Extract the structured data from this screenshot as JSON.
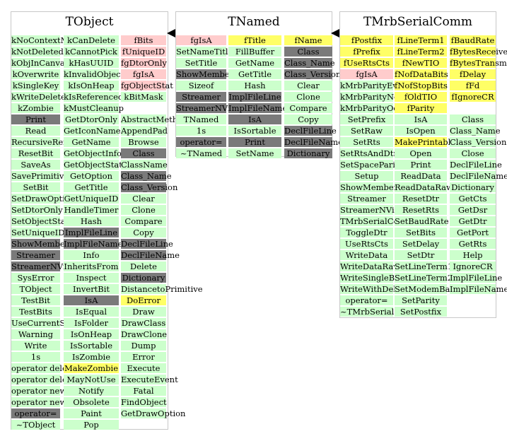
{
  "boxes": [
    {
      "title": "TObject",
      "columns": [
        [
          {
            "t": "kNoContextMenu",
            "c": "m"
          },
          {
            "t": "kNotDeleted",
            "c": "m"
          },
          {
            "t": "kObjInCanvas",
            "c": "m"
          },
          {
            "t": "kOverwrite",
            "c": "m"
          },
          {
            "t": "kSingleKey",
            "c": "m"
          },
          {
            "t": "kWriteDelete",
            "c": "m"
          },
          {
            "t": "kZombie",
            "c": "m"
          },
          {
            "t": "Print",
            "c": "g"
          },
          {
            "t": "Read",
            "c": "m"
          },
          {
            "t": "RecursiveRemove",
            "c": "m"
          },
          {
            "t": "ResetBit",
            "c": "m"
          },
          {
            "t": "SaveAs",
            "c": "m"
          },
          {
            "t": "SavePrimitive",
            "c": "m"
          },
          {
            "t": "SetBit",
            "c": "m"
          },
          {
            "t": "SetDrawOption",
            "c": "m"
          },
          {
            "t": "SetDtorOnly",
            "c": "m"
          },
          {
            "t": "SetObjectStat",
            "c": "m"
          },
          {
            "t": "SetUniqueID",
            "c": "m"
          },
          {
            "t": "ShowMembers",
            "c": "g"
          },
          {
            "t": "Streamer",
            "c": "g"
          },
          {
            "t": "StreamerNVirtual",
            "c": "g"
          },
          {
            "t": "SysError",
            "c": "m"
          },
          {
            "t": "TObject",
            "c": "m"
          },
          {
            "t": "TestBit",
            "c": "m"
          },
          {
            "t": "TestBits",
            "c": "m"
          },
          {
            "t": "UseCurrentStyle",
            "c": "m"
          },
          {
            "t": "Warning",
            "c": "m"
          },
          {
            "t": "Write",
            "c": "m"
          },
          {
            "t": "1s",
            "c": "m"
          },
          {
            "t": "operator delete",
            "c": "m"
          },
          {
            "t": "operator delete[]",
            "c": "m"
          },
          {
            "t": "operator new",
            "c": "m"
          },
          {
            "t": "operator new[]",
            "c": "m"
          },
          {
            "t": "operator=",
            "c": "g"
          },
          {
            "t": "~TObject",
            "c": "m"
          }
        ],
        [
          {
            "t": "kCanDelete",
            "c": "m"
          },
          {
            "t": "kCannotPick",
            "c": "m"
          },
          {
            "t": "kHasUUID",
            "c": "m"
          },
          {
            "t": "kInvalidObject",
            "c": "m"
          },
          {
            "t": "kIsOnHeap",
            "c": "m"
          },
          {
            "t": "kIsReferenced",
            "c": "m"
          },
          {
            "t": "kMustCleanup",
            "c": "m"
          },
          {
            "t": "GetDtorOnly",
            "c": "m"
          },
          {
            "t": "GetIconName",
            "c": "m"
          },
          {
            "t": "GetName",
            "c": "m"
          },
          {
            "t": "GetObjectInfo",
            "c": "m"
          },
          {
            "t": "GetObjectStat",
            "c": "m"
          },
          {
            "t": "GetOption",
            "c": "m"
          },
          {
            "t": "GetTitle",
            "c": "m"
          },
          {
            "t": "GetUniqueID",
            "c": "m"
          },
          {
            "t": "HandleTimer",
            "c": "m"
          },
          {
            "t": "Hash",
            "c": "m"
          },
          {
            "t": "ImplFileLine",
            "c": "g"
          },
          {
            "t": "ImplFileName",
            "c": "g"
          },
          {
            "t": "Info",
            "c": "m"
          },
          {
            "t": "InheritsFrom",
            "c": "m"
          },
          {
            "t": "Inspect",
            "c": "m"
          },
          {
            "t": "InvertBit",
            "c": "m"
          },
          {
            "t": "IsA",
            "c": "g"
          },
          {
            "t": "IsEqual",
            "c": "m"
          },
          {
            "t": "IsFolder",
            "c": "m"
          },
          {
            "t": "IsOnHeap",
            "c": "m"
          },
          {
            "t": "IsSortable",
            "c": "m"
          },
          {
            "t": "IsZombie",
            "c": "m"
          },
          {
            "t": "MakeZombie",
            "c": "h"
          },
          {
            "t": "MayNotUse",
            "c": "m"
          },
          {
            "t": "Notify",
            "c": "m"
          },
          {
            "t": "Obsolete",
            "c": "m"
          },
          {
            "t": "Paint",
            "c": "m"
          },
          {
            "t": "Pop",
            "c": "m"
          }
        ],
        [
          {
            "t": "fBits",
            "c": "p"
          },
          {
            "t": "fUniqueID",
            "c": "p"
          },
          {
            "t": "fgDtorOnly",
            "c": "p"
          },
          {
            "t": "fgIsA",
            "c": "p"
          },
          {
            "t": "fgObjectStat",
            "c": "p"
          },
          {
            "t": "kBitMask",
            "c": "m"
          },
          {
            "t": "",
            "c": "none"
          },
          {
            "t": "AbstractMethod",
            "c": "m"
          },
          {
            "t": "AppendPad",
            "c": "m"
          },
          {
            "t": "Browse",
            "c": "m"
          },
          {
            "t": "Class",
            "c": "g"
          },
          {
            "t": "ClassName",
            "c": "m"
          },
          {
            "t": "Class_Name",
            "c": "g"
          },
          {
            "t": "Class_Version",
            "c": "g"
          },
          {
            "t": "Clear",
            "c": "m"
          },
          {
            "t": "Clone",
            "c": "m"
          },
          {
            "t": "Compare",
            "c": "m"
          },
          {
            "t": "Copy",
            "c": "m"
          },
          {
            "t": "DeclFileLine",
            "c": "g"
          },
          {
            "t": "DeclFileName",
            "c": "g"
          },
          {
            "t": "Delete",
            "c": "m"
          },
          {
            "t": "Dictionary",
            "c": "g"
          },
          {
            "t": "DistancetoPrimitive",
            "c": "m"
          },
          {
            "t": "DoError",
            "c": "h"
          },
          {
            "t": "Draw",
            "c": "m"
          },
          {
            "t": "DrawClass",
            "c": "m"
          },
          {
            "t": "DrawClone",
            "c": "m"
          },
          {
            "t": "Dump",
            "c": "m"
          },
          {
            "t": "Error",
            "c": "m"
          },
          {
            "t": "Execute",
            "c": "m"
          },
          {
            "t": "ExecuteEvent",
            "c": "m"
          },
          {
            "t": "Fatal",
            "c": "m"
          },
          {
            "t": "FindObject",
            "c": "m"
          },
          {
            "t": "GetDrawOption",
            "c": "m"
          }
        ]
      ]
    },
    {
      "title": "TNamed",
      "columns": [
        [
          {
            "t": "fgIsA",
            "c": "p"
          },
          {
            "t": "SetNameTitle",
            "c": "m"
          },
          {
            "t": "SetTitle",
            "c": "m"
          },
          {
            "t": "ShowMembers",
            "c": "g"
          },
          {
            "t": "Sizeof",
            "c": "m"
          },
          {
            "t": "Streamer",
            "c": "g"
          },
          {
            "t": "StreamerNVirtual",
            "c": "g"
          },
          {
            "t": "TNamed",
            "c": "m"
          },
          {
            "t": "1s",
            "c": "m"
          },
          {
            "t": "operator=",
            "c": "g"
          },
          {
            "t": "~TNamed",
            "c": "m"
          }
        ],
        [
          {
            "t": "fTitle",
            "c": "h"
          },
          {
            "t": "FillBuffer",
            "c": "m"
          },
          {
            "t": "GetName",
            "c": "m"
          },
          {
            "t": "GetTitle",
            "c": "m"
          },
          {
            "t": "Hash",
            "c": "m"
          },
          {
            "t": "ImplFileLine",
            "c": "g"
          },
          {
            "t": "ImplFileName",
            "c": "g"
          },
          {
            "t": "IsA",
            "c": "g"
          },
          {
            "t": "IsSortable",
            "c": "m"
          },
          {
            "t": "Print",
            "c": "g"
          },
          {
            "t": "SetName",
            "c": "m"
          }
        ],
        [
          {
            "t": "fName",
            "c": "h"
          },
          {
            "t": "Class",
            "c": "g"
          },
          {
            "t": "Class_Name",
            "c": "g"
          },
          {
            "t": "Class_Version",
            "c": "g"
          },
          {
            "t": "Clear",
            "c": "m"
          },
          {
            "t": "Clone",
            "c": "m"
          },
          {
            "t": "Compare",
            "c": "m"
          },
          {
            "t": "Copy",
            "c": "m"
          },
          {
            "t": "DeclFileLine",
            "c": "g"
          },
          {
            "t": "DeclFileName",
            "c": "g"
          },
          {
            "t": "Dictionary",
            "c": "g"
          }
        ]
      ]
    },
    {
      "title": "TMrbSerialComm",
      "columns": [
        [
          {
            "t": "fPostfix",
            "c": "h"
          },
          {
            "t": "fPrefix",
            "c": "h"
          },
          {
            "t": "fUseRtsCts",
            "c": "h"
          },
          {
            "t": "fgIsA",
            "c": "p"
          },
          {
            "t": "kMrbParityEven",
            "c": "m"
          },
          {
            "t": "kMrbParityNone",
            "c": "m"
          },
          {
            "t": "kMrbParityOdd",
            "c": "m"
          },
          {
            "t": "SetPrefix",
            "c": "m"
          },
          {
            "t": "SetRaw",
            "c": "m"
          },
          {
            "t": "SetRts",
            "c": "m"
          },
          {
            "t": "SetRtsAndDtr",
            "c": "m"
          },
          {
            "t": "SetSpaceParity",
            "c": "m"
          },
          {
            "t": "Setup",
            "c": "m"
          },
          {
            "t": "ShowMembers",
            "c": "m"
          },
          {
            "t": "Streamer",
            "c": "m"
          },
          {
            "t": "StreamerNVirtual",
            "c": "m"
          },
          {
            "t": "TMrbSerialComm",
            "c": "m"
          },
          {
            "t": "ToggleDtr",
            "c": "m"
          },
          {
            "t": "UseRtsCts",
            "c": "m"
          },
          {
            "t": "WriteData",
            "c": "m"
          },
          {
            "t": "WriteDataRaw",
            "c": "m"
          },
          {
            "t": "WriteSingleByte",
            "c": "m"
          },
          {
            "t": "WriteWithDelay",
            "c": "m"
          },
          {
            "t": "operator=",
            "c": "m"
          },
          {
            "t": "~TMrbSerialComm",
            "c": "m"
          }
        ],
        [
          {
            "t": "fLineTerm1",
            "c": "h"
          },
          {
            "t": "fLineTerm2",
            "c": "h"
          },
          {
            "t": "fNewTIO",
            "c": "h"
          },
          {
            "t": "fNofDataBits",
            "c": "h"
          },
          {
            "t": "fNofStopBits",
            "c": "h"
          },
          {
            "t": "fOldTIO",
            "c": "h"
          },
          {
            "t": "fParity",
            "c": "h"
          },
          {
            "t": "IsA",
            "c": "m"
          },
          {
            "t": "IsOpen",
            "c": "m"
          },
          {
            "t": "MakePrintable",
            "c": "h"
          },
          {
            "t": "Open",
            "c": "m"
          },
          {
            "t": "Print",
            "c": "m"
          },
          {
            "t": "ReadData",
            "c": "m"
          },
          {
            "t": "ReadDataRaw",
            "c": "m"
          },
          {
            "t": "ResetDtr",
            "c": "m"
          },
          {
            "t": "ResetRts",
            "c": "m"
          },
          {
            "t": "SetBaudRate",
            "c": "m"
          },
          {
            "t": "SetBits",
            "c": "m"
          },
          {
            "t": "SetDelay",
            "c": "m"
          },
          {
            "t": "SetDtr",
            "c": "m"
          },
          {
            "t": "SetLineTerm1",
            "c": "m"
          },
          {
            "t": "SetLineTerm2",
            "c": "m"
          },
          {
            "t": "SetModemBaudRate",
            "c": "m"
          },
          {
            "t": "SetParity",
            "c": "m"
          },
          {
            "t": "SetPostfix",
            "c": "m"
          }
        ],
        [
          {
            "t": "fBaudRate",
            "c": "h"
          },
          {
            "t": "fBytesReceived",
            "c": "h"
          },
          {
            "t": "fBytesTransmitted",
            "c": "h"
          },
          {
            "t": "fDelay",
            "c": "h"
          },
          {
            "t": "fFd",
            "c": "h"
          },
          {
            "t": "fIgnoreCR",
            "c": "h"
          },
          {
            "t": "",
            "c": "none"
          },
          {
            "t": "Class",
            "c": "m"
          },
          {
            "t": "Class_Name",
            "c": "m"
          },
          {
            "t": "Class_Version",
            "c": "m"
          },
          {
            "t": "Close",
            "c": "m"
          },
          {
            "t": "DeclFileLine",
            "c": "m"
          },
          {
            "t": "DeclFileName",
            "c": "m"
          },
          {
            "t": "Dictionary",
            "c": "m"
          },
          {
            "t": "GetCts",
            "c": "m"
          },
          {
            "t": "GetDsr",
            "c": "m"
          },
          {
            "t": "GetDtr",
            "c": "m"
          },
          {
            "t": "GetPort",
            "c": "m"
          },
          {
            "t": "GetRts",
            "c": "m"
          },
          {
            "t": "Help",
            "c": "m"
          },
          {
            "t": "IgnoreCR",
            "c": "m"
          },
          {
            "t": "ImplFileLine",
            "c": "m"
          },
          {
            "t": "ImplFileName",
            "c": "m"
          }
        ]
      ]
    }
  ],
  "colors": {
    "method": "#ccffcc",
    "private": "#ffcccc",
    "highlight": "#ffff66",
    "inherited": "#7a7a7a"
  }
}
